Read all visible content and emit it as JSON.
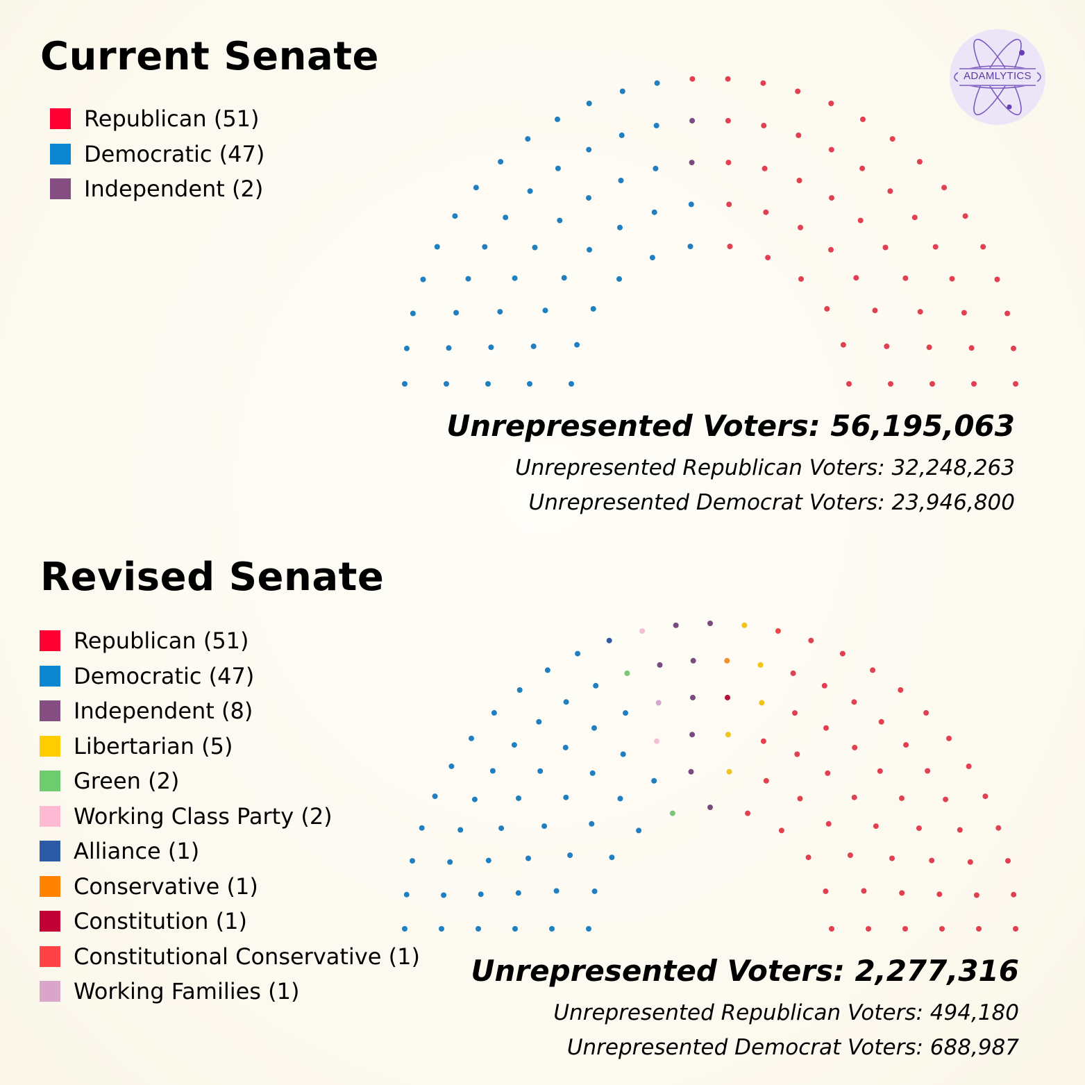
{
  "logo": {
    "text": "ADAMLYTICS"
  },
  "colors": {
    "Republican": "#e0404f",
    "Democratic": "#1f7fc0",
    "Independent": "#7a4b80",
    "Libertarian": "#f0c419",
    "Green": "#7cc576",
    "Working Class Party": "#f5bed3",
    "Alliance": "#3359a4",
    "Conservative": "#f0902e",
    "Constitution": "#b3103a",
    "Constitutional Conservative": "#f04848",
    "Working Families": "#d8a8cc"
  },
  "current": {
    "title": "Current Senate",
    "legend": [
      {
        "label": "Republican (51)",
        "color": "#fe0034"
      },
      {
        "label": "Democratic (47)",
        "color": "#0c86d1"
      },
      {
        "label": "Independent (2)",
        "color": "#844e80"
      }
    ],
    "total_label": "Unrepresented Voters: 56,195,063",
    "rep_label": "Unrepresented Republican Voters: 32,248,263",
    "dem_label": "Unrepresented Democrat Voters: 23,946,800"
  },
  "revised": {
    "title": "Revised Senate",
    "legend": [
      {
        "label": "Republican (51)",
        "color": "#fe0034"
      },
      {
        "label": "Democratic (47)",
        "color": "#0c86d1"
      },
      {
        "label": "Independent (8)",
        "color": "#844e80"
      },
      {
        "label": "Libertarian (5)",
        "color": "#ffcd00"
      },
      {
        "label": "Green (2)",
        "color": "#6ccc6e"
      },
      {
        "label": "Working Class Party (2)",
        "color": "#ffbad3"
      },
      {
        "label": "Alliance (1)",
        "color": "#2d5aa6"
      },
      {
        "label": "Conservative (1)",
        "color": "#ff8300"
      },
      {
        "label": "Constitution (1)",
        "color": "#c00037"
      },
      {
        "label": "Constitutional Conservative (1)",
        "color": "#fe4245"
      },
      {
        "label": "Working Families (1)",
        "color": "#d9a5c9"
      }
    ],
    "total_label": "Unrepresented Voters: 2,277,316",
    "rep_label": "Unrepresented Republican Voters: 494,180",
    "dem_label": "Unrepresented Democrat Voters: 688,987"
  },
  "chart_data": [
    {
      "type": "parliament",
      "title": "Current Senate",
      "total_seats": 100,
      "series": [
        {
          "name": "Democratic",
          "value": 47
        },
        {
          "name": "Independent",
          "value": 2
        },
        {
          "name": "Republican",
          "value": 51
        }
      ],
      "unrepresented_voters": 56195063,
      "unrepresented_republican_voters": 32248263,
      "unrepresented_democrat_voters": 23946800
    },
    {
      "type": "parliament",
      "title": "Revised Senate",
      "total_seats": 120,
      "series": [
        {
          "name": "Democratic",
          "value": 47
        },
        {
          "name": "Alliance",
          "value": 1
        },
        {
          "name": "Green",
          "value": 2
        },
        {
          "name": "Working Class Party",
          "value": 2
        },
        {
          "name": "Working Families",
          "value": 1
        },
        {
          "name": "Independent",
          "value": 8
        },
        {
          "name": "Conservative",
          "value": 1
        },
        {
          "name": "Constitution",
          "value": 1
        },
        {
          "name": "Libertarian",
          "value": 5
        },
        {
          "name": "Constitutional Conservative",
          "value": 1
        },
        {
          "name": "Republican",
          "value": 51
        }
      ],
      "unrepresented_voters": 2277316,
      "unrepresented_republican_voters": 494180,
      "unrepresented_democrat_voters": 688987
    }
  ]
}
